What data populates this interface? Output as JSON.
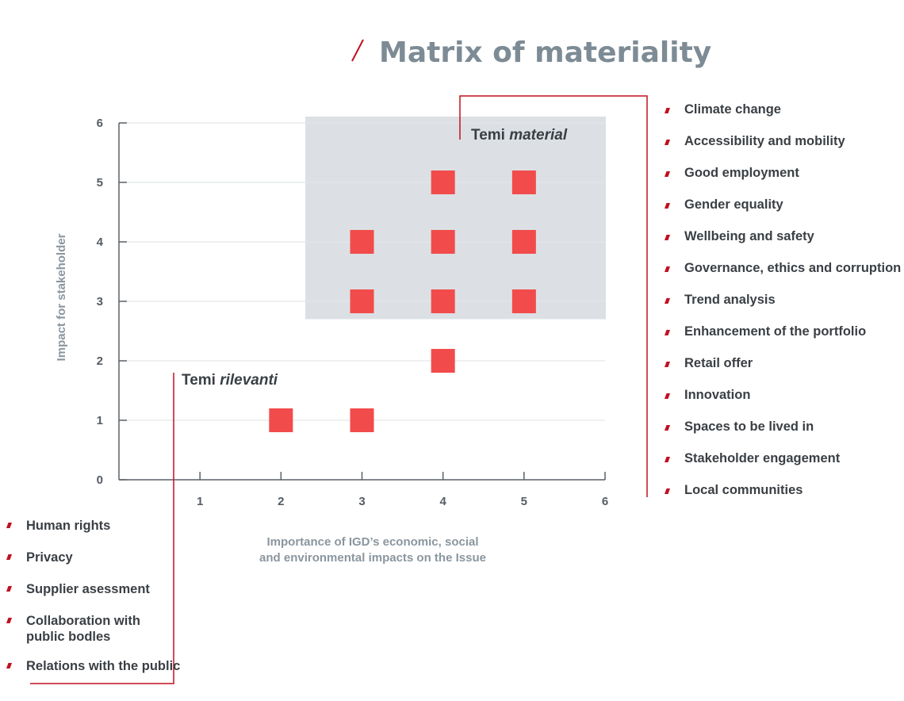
{
  "title": "Matrix of materiality",
  "colors": {
    "accent": "#c0111f",
    "title": "#7d8b95",
    "point": "#f24b4b",
    "zone": "#dce0e4",
    "axis": "#5a6168",
    "grid": "#e3e6e9",
    "text": "#3a3f44"
  },
  "chart_data": {
    "type": "scatter",
    "xlabel": [
      "Importance of IGD’s economic, social",
      "and environmental impacts on the Issue"
    ],
    "ylabel": "Impact for stakeholder",
    "xlim": [
      0,
      6
    ],
    "ylim": [
      0,
      6
    ],
    "x_ticks": [
      "1",
      "2",
      "3",
      "4",
      "5",
      "6"
    ],
    "y_ticks": [
      "0",
      "1",
      "2",
      "3",
      "4",
      "5",
      "6"
    ],
    "grid": "horizontal",
    "marker": "square",
    "points": [
      {
        "x": 4,
        "y": 5
      },
      {
        "x": 5,
        "y": 5
      },
      {
        "x": 3,
        "y": 4
      },
      {
        "x": 4,
        "y": 4
      },
      {
        "x": 5,
        "y": 4
      },
      {
        "x": 3,
        "y": 3
      },
      {
        "x": 4,
        "y": 3
      },
      {
        "x": 5,
        "y": 3
      },
      {
        "x": 4,
        "y": 2
      },
      {
        "x": 2,
        "y": 1
      },
      {
        "x": 3,
        "y": 1
      }
    ],
    "material_zone": {
      "label_plain": "Temi ",
      "label_italic": "material",
      "x_range": [
        2.3,
        6
      ],
      "y_range": [
        2.7,
        6
      ]
    },
    "relevant_label": {
      "label_plain": "Temi ",
      "label_italic": "rilevanti"
    },
    "material_topics": [
      "Climate change",
      "Accessibility and mobility",
      "Good employment",
      "Gender equality",
      "Wellbeing and safety",
      "Governance, ethics and corruption",
      "Trend analysis",
      "Enhancement of the portfolio",
      "Retail offer",
      "Innovation",
      "Spaces to be lived in",
      "Stakeholder engagement",
      "Local communities"
    ],
    "relevant_topics": [
      [
        "Human rights"
      ],
      [
        "Privacy"
      ],
      [
        "Supplier asessment"
      ],
      [
        "Collaboration with",
        "public bodles"
      ],
      [
        "Relations with the public"
      ]
    ]
  }
}
